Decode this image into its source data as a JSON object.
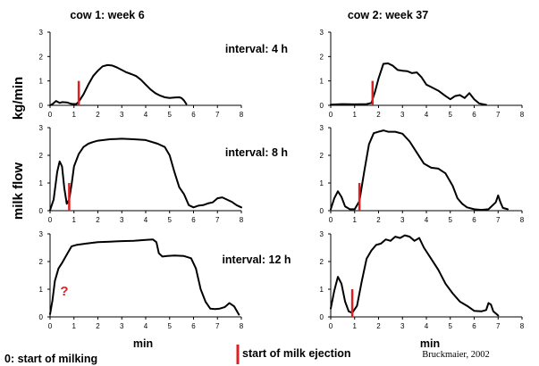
{
  "column_titles": [
    "cow 1: week 6",
    "cow 2: week 37"
  ],
  "interval_labels": [
    "interval: 4 h",
    "interval: 8 h",
    "interval: 12 h"
  ],
  "y_axis_label_left": "milk flow",
  "y_axis_label_right": "kg/min",
  "x_axis_label": "min",
  "legend": {
    "start_of_milking": "0: start of milking",
    "start_of_milk_ejection": "start of milk ejection",
    "marker_color": "#e02020"
  },
  "question_mark": "?",
  "question_mark_color": "#e02020",
  "credit": "Bruckmaier, 2002",
  "chart_data": [
    {
      "type": "line",
      "cow": "cow 1: week 6",
      "interval": "interval: 4 h",
      "xlim": [
        0,
        8
      ],
      "ylim": [
        0,
        3
      ],
      "xticks": [
        0,
        1,
        2,
        3,
        4,
        5,
        6,
        7,
        8
      ],
      "yticks": [
        0,
        1,
        2,
        3
      ],
      "ejection_start": 1.2,
      "x": [
        0,
        0.1,
        0.25,
        0.4,
        0.5,
        0.7,
        0.9,
        1.1,
        1.2,
        1.4,
        1.6,
        1.8,
        2.0,
        2.2,
        2.4,
        2.6,
        2.8,
        3.0,
        3.2,
        3.4,
        3.6,
        3.8,
        4.0,
        4.2,
        4.4,
        4.6,
        4.8,
        5.0,
        5.2,
        5.4,
        5.5,
        5.6,
        5.7
      ],
      "y": [
        0,
        0.05,
        0.18,
        0.1,
        0.13,
        0.12,
        0.06,
        0.05,
        0.15,
        0.45,
        0.85,
        1.2,
        1.42,
        1.6,
        1.65,
        1.63,
        1.55,
        1.45,
        1.35,
        1.28,
        1.2,
        1.05,
        0.85,
        0.65,
        0.5,
        0.4,
        0.33,
        0.3,
        0.32,
        0.33,
        0.3,
        0.2,
        0.05
      ]
    },
    {
      "type": "line",
      "cow": "cow 1: week 6",
      "interval": "interval: 8 h",
      "xlim": [
        0,
        8
      ],
      "ylim": [
        0,
        3
      ],
      "xticks": [
        0,
        1,
        2,
        3,
        4,
        5,
        6,
        7,
        8
      ],
      "yticks": [
        0,
        1,
        2,
        3
      ],
      "ejection_start": 0.8,
      "x": [
        0,
        0.15,
        0.3,
        0.4,
        0.5,
        0.6,
        0.7,
        0.8,
        0.9,
        1.0,
        1.2,
        1.4,
        1.6,
        1.8,
        2.0,
        2.5,
        3.0,
        3.5,
        4.0,
        4.5,
        4.8,
        5.0,
        5.2,
        5.4,
        5.6,
        5.8,
        6.0,
        6.2,
        6.4,
        6.6,
        6.8,
        7.0,
        7.2,
        7.4,
        7.6,
        7.8,
        8.0
      ],
      "y": [
        0.02,
        0.4,
        1.4,
        1.78,
        1.6,
        0.8,
        0.25,
        0.4,
        0.95,
        1.6,
        2.05,
        2.3,
        2.42,
        2.48,
        2.53,
        2.58,
        2.6,
        2.58,
        2.55,
        2.42,
        2.3,
        2.0,
        1.4,
        0.85,
        0.6,
        0.2,
        0.12,
        0.18,
        0.2,
        0.26,
        0.3,
        0.45,
        0.48,
        0.4,
        0.32,
        0.2,
        0.12
      ]
    },
    {
      "type": "line",
      "cow": "cow 1: week 6",
      "interval": "interval: 12 h",
      "xlim": [
        0,
        8
      ],
      "ylim": [
        0,
        3
      ],
      "xticks": [
        0,
        1,
        2,
        3,
        4,
        5,
        6,
        7,
        8
      ],
      "yticks": [
        0,
        1,
        2,
        3
      ],
      "ejection_start": null,
      "x": [
        0,
        0.1,
        0.2,
        0.35,
        0.5,
        0.7,
        0.9,
        1.1,
        1.5,
        2.0,
        2.5,
        3.0,
        3.5,
        4.0,
        4.3,
        4.45,
        4.55,
        4.7,
        4.9,
        5.2,
        5.6,
        5.9,
        6.1,
        6.3,
        6.5,
        6.7,
        6.9,
        7.1,
        7.3,
        7.5,
        7.7,
        7.9
      ],
      "y": [
        0.1,
        0.6,
        1.3,
        1.75,
        1.95,
        2.25,
        2.55,
        2.6,
        2.65,
        2.7,
        2.72,
        2.74,
        2.75,
        2.78,
        2.8,
        2.7,
        2.3,
        2.18,
        2.2,
        2.22,
        2.2,
        2.12,
        1.75,
        1.0,
        0.55,
        0.3,
        0.28,
        0.3,
        0.35,
        0.5,
        0.38,
        0.08
      ]
    },
    {
      "type": "line",
      "cow": "cow 2: week 37",
      "interval": "interval: 4 h",
      "xlim": [
        0,
        8
      ],
      "ylim": [
        0,
        3
      ],
      "xticks": [
        0,
        1,
        2,
        3,
        4,
        5,
        6,
        7,
        8
      ],
      "yticks": [
        0,
        1,
        2,
        3
      ],
      "ejection_start": 1.75,
      "x": [
        0,
        0.5,
        1.0,
        1.5,
        1.7,
        1.85,
        2.0,
        2.2,
        2.4,
        2.6,
        2.8,
        3.0,
        3.2,
        3.4,
        3.6,
        3.8,
        4.0,
        4.2,
        4.5,
        4.8,
        5.0,
        5.2,
        5.4,
        5.6,
        5.8,
        6.0,
        6.2,
        6.5
      ],
      "y": [
        0.03,
        0.05,
        0.04,
        0.05,
        0.1,
        0.55,
        1.1,
        1.7,
        1.72,
        1.62,
        1.45,
        1.42,
        1.4,
        1.32,
        1.35,
        1.15,
        0.85,
        0.75,
        0.6,
        0.38,
        0.25,
        0.38,
        0.42,
        0.3,
        0.5,
        0.25,
        0.08,
        0.02
      ]
    },
    {
      "type": "line",
      "cow": "cow 2: week 37",
      "interval": "interval: 8 h",
      "xlim": [
        0,
        8
      ],
      "ylim": [
        0,
        3
      ],
      "xticks": [
        0,
        1,
        2,
        3,
        4,
        5,
        6,
        7,
        8
      ],
      "yticks": [
        0,
        1,
        2,
        3
      ],
      "ejection_start": 1.2,
      "x": [
        0,
        0.15,
        0.3,
        0.45,
        0.6,
        0.8,
        1.0,
        1.2,
        1.4,
        1.6,
        1.8,
        2.0,
        2.2,
        2.4,
        2.7,
        3.0,
        3.3,
        3.6,
        3.9,
        4.2,
        4.5,
        4.8,
        5.1,
        5.3,
        5.5,
        5.7,
        6.0,
        6.3,
        6.6,
        6.9,
        7.0,
        7.1,
        7.2,
        7.4
      ],
      "y": [
        0.05,
        0.45,
        0.7,
        0.5,
        0.15,
        0.05,
        0.05,
        0.35,
        1.4,
        2.4,
        2.8,
        2.85,
        2.9,
        2.85,
        2.85,
        2.78,
        2.5,
        2.1,
        1.7,
        1.55,
        1.52,
        1.35,
        0.9,
        0.45,
        0.25,
        0.12,
        0.05,
        0.03,
        0.05,
        0.3,
        0.55,
        0.3,
        0.1,
        0.05
      ]
    },
    {
      "type": "line",
      "cow": "cow 2: week 37",
      "interval": "interval: 12 h",
      "xlim": [
        0,
        8
      ],
      "ylim": [
        0,
        3
      ],
      "xticks": [
        0,
        1,
        2,
        3,
        4,
        5,
        6,
        7,
        8
      ],
      "yticks": [
        0,
        1,
        2,
        3
      ],
      "ejection_start": 0.9,
      "x": [
        0,
        0.15,
        0.3,
        0.45,
        0.6,
        0.75,
        0.9,
        1.1,
        1.3,
        1.5,
        1.7,
        1.9,
        2.1,
        2.3,
        2.5,
        2.7,
        2.9,
        3.1,
        3.3,
        3.5,
        3.7,
        3.9,
        4.2,
        4.5,
        4.8,
        5.1,
        5.4,
        5.7,
        6.0,
        6.3,
        6.5,
        6.6,
        6.7,
        6.8,
        7.0
      ],
      "y": [
        0.3,
        0.95,
        1.45,
        1.2,
        0.55,
        0.2,
        0.15,
        0.4,
        1.3,
        2.1,
        2.4,
        2.6,
        2.65,
        2.8,
        2.75,
        2.9,
        2.85,
        2.95,
        2.9,
        2.75,
        2.85,
        2.5,
        2.1,
        1.7,
        1.2,
        0.85,
        0.55,
        0.4,
        0.22,
        0.2,
        0.25,
        0.5,
        0.45,
        0.2,
        0.05
      ]
    }
  ]
}
